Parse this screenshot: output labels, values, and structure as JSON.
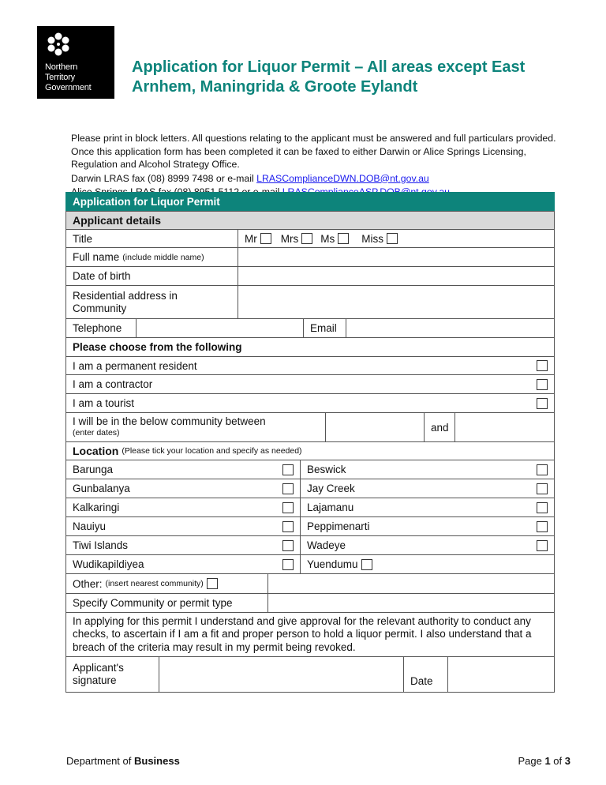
{
  "logo": {
    "lines": [
      "Northern",
      "Territory",
      "Government"
    ]
  },
  "title": "Application for Liquor Permit – All areas except East Arnhem, Maningrida & Groote Eylandt",
  "intro": {
    "paragraph": "Please print in block letters.  All questions relating to the applicant must be answered and full particulars provided. Once this application form has been completed it can be faxed to either Darwin or Alice Springs Licensing, Regulation and Alcohol Strategy Office.",
    "darwin_text": "Darwin LRAS fax (08) 8999 7498 or e-mail ",
    "darwin_email": "LRASComplianceDWN.DOB@nt.gov.au",
    "alice_text": "Alice Springs LRAS fax (08) 8951 5112 or e-mail ",
    "alice_email": "LRASComplianceASP.DOB@nt.gov.au"
  },
  "form": {
    "header": "Application for Liquor Permit",
    "section": "Applicant details",
    "title_label": "Title",
    "title_options": [
      "Mr",
      "Mrs",
      "Ms",
      "Miss"
    ],
    "full_name": "Full name",
    "full_name_note": "(include middle name)",
    "dob": "Date of birth",
    "address": "Residential address in Community",
    "telephone": "Telephone",
    "email": "Email",
    "choose": "Please choose from the following",
    "choices": [
      "I am a permanent resident",
      "I am a contractor",
      "I am a tourist"
    ],
    "between": "I will be in the below community between",
    "between_note": "(enter dates)",
    "and": "and",
    "location": "Location",
    "location_note": "(Please tick your location and specify as needed)",
    "locations_left": [
      "Barunga",
      "Gunbalanya",
      "Kalkaringi",
      "Nauiyu",
      "Tiwi Islands",
      "Wudikapildiyea"
    ],
    "locations_right": [
      "Beswick",
      "Jay Creek",
      "Lajamanu",
      "Peppimenarti",
      "Wadeye",
      "Yuendumu"
    ],
    "other": "Other:",
    "other_note": "(insert nearest community)",
    "specify": "Specify Community or permit type",
    "declaration": "In applying for this permit I understand and give approval for the relevant authority to conduct any checks, to ascertain if I am a fit and proper person to hold a liquor permit.  I also understand that a breach of the criteria may result in my permit being revoked.",
    "signature": "Applicant's signature",
    "date": "Date"
  },
  "footer": {
    "dept_prefix": "Department of ",
    "dept_bold": "Business",
    "page_prefix": "Page ",
    "page": "1",
    "page_mid": " of ",
    "pages": "3"
  },
  "colors": {
    "accent": "#0d847b",
    "section_bg": "#d9d9d9"
  }
}
